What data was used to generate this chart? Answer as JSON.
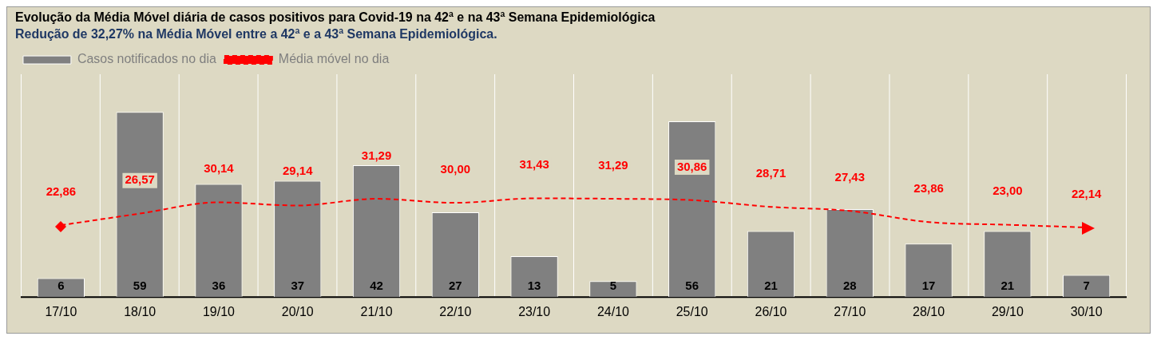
{
  "chart_data": {
    "type": "bar",
    "title": "Evolução da Média Móvel diária de casos positivos para Covid-19 na 42ª e na 43ª Semana Epidemiológica",
    "subtitle": "Redução de 32,27% na Média Móvel entre a 42ª e a 43ª Semana Epidemiológica.",
    "categories": [
      "17/10",
      "18/10",
      "19/10",
      "20/10",
      "21/10",
      "22/10",
      "23/10",
      "24/10",
      "25/10",
      "26/10",
      "27/10",
      "28/10",
      "29/10",
      "30/10"
    ],
    "series": [
      {
        "name": "Casos notificados no dia",
        "color": "#808080",
        "values": [
          6,
          59,
          36,
          37,
          42,
          27,
          13,
          5,
          56,
          21,
          28,
          17,
          21,
          7
        ],
        "value_labels": [
          "6",
          "59",
          "36",
          "37",
          "42",
          "27",
          "13",
          "5",
          "56",
          "21",
          "28",
          "17",
          "21",
          "7"
        ]
      },
      {
        "name": "Média móvel no dia",
        "type": "line",
        "color": "#ff0000",
        "line_style": "dashed",
        "values": [
          22.86,
          26.57,
          30.14,
          29.14,
          31.29,
          30.0,
          31.43,
          31.29,
          30.86,
          28.71,
          27.43,
          23.86,
          23.0,
          22.14
        ],
        "value_labels": [
          "22,86",
          "26,57",
          "30,14",
          "29,14",
          "31,29",
          "30,00",
          "31,43",
          "31,29",
          "30,86",
          "28,71",
          "27,43",
          "23,86",
          "23,00",
          "22,14"
        ]
      }
    ],
    "ylim": [
      0,
      71
    ],
    "tick_labels": "x",
    "grid": "x",
    "legend": "top left"
  }
}
